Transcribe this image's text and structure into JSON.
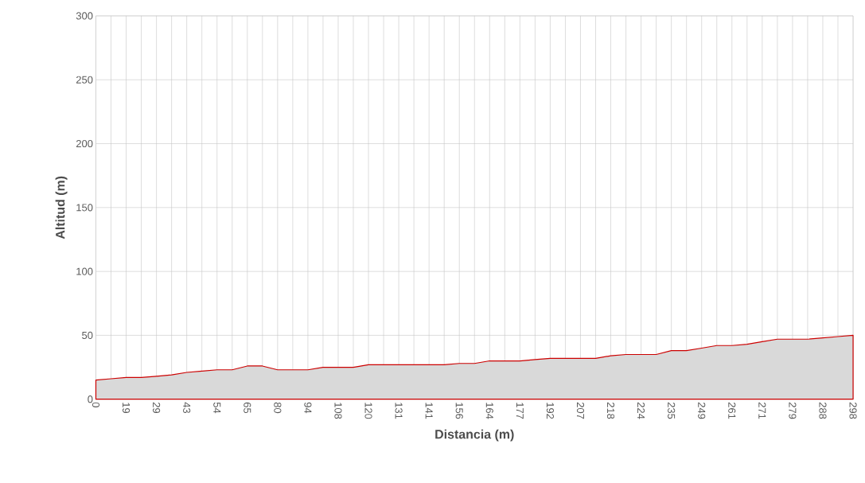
{
  "chart_data": {
    "type": "area",
    "xlabel": "Distancia (m)",
    "ylabel": "Altitud (m)",
    "categories": [
      "0",
      null,
      "19",
      null,
      "29",
      null,
      "43",
      null,
      "54",
      null,
      "65",
      null,
      "80",
      null,
      "94",
      null,
      "108",
      null,
      "120",
      null,
      "131",
      null,
      "141",
      null,
      "156",
      null,
      "164",
      null,
      "177",
      null,
      "192",
      null,
      "207",
      null,
      "218",
      null,
      "224",
      null,
      "235",
      null,
      "249",
      null,
      "261",
      null,
      "271",
      null,
      "279",
      null,
      "288",
      null,
      "298"
    ],
    "series": [
      {
        "color": "#d9d9d9",
        "values": [
          15,
          16,
          17,
          17,
          18,
          19,
          21,
          22,
          23,
          23,
          26,
          26,
          23,
          23,
          23,
          25,
          25,
          25,
          27,
          27,
          27,
          27,
          27,
          27,
          28,
          28,
          30,
          30,
          30,
          31,
          32,
          32,
          32,
          32,
          34,
          35,
          35,
          35,
          38,
          38,
          40,
          42,
          42,
          43,
          45,
          47,
          47,
          47,
          48,
          49,
          50
        ]
      }
    ],
    "ylim": [
      0,
      300
    ],
    "yticks": [
      0,
      50,
      100,
      150,
      200,
      250,
      300
    ],
    "grid": true
  }
}
